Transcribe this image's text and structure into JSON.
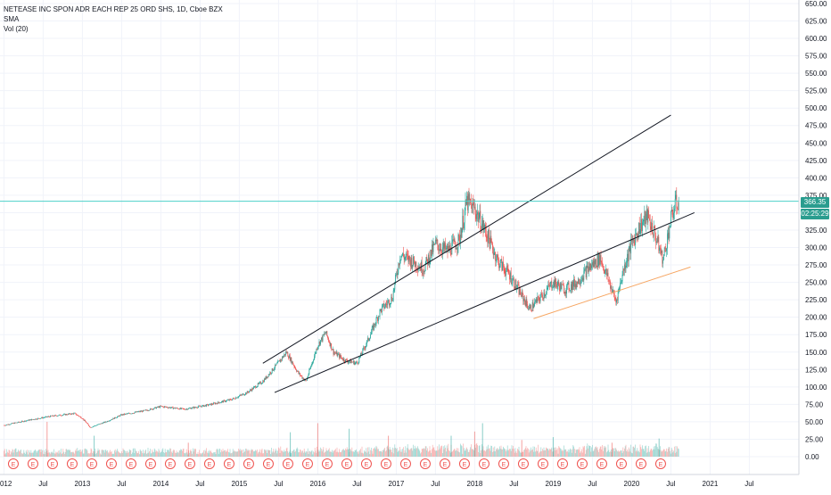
{
  "legend": {
    "symbol_line": "NETEASE INC SPON ADR EACH REP 25 ORD SHS, 1D, Cboe BZX",
    "indicator_1": "SMA",
    "indicator_2": "Vol (20)"
  },
  "price_tags": {
    "last_price": "366.35",
    "countdown": "02:25:29"
  },
  "colors": {
    "up": "#26a69a",
    "down": "#ef5350",
    "price_line": "#4dd0c8",
    "channel": "#131722",
    "support": "#f6a561",
    "grid": "#f0f3fa",
    "axis_text": "#131722",
    "tag_bg": "#2a9d8f",
    "earnings": "#ef5350"
  },
  "earnings_marker_label": "E",
  "chart_data": {
    "type": "candlestick",
    "title": "NETEASE INC SPON ADR EACH REP 25 ORD SHS, 1D, Cboe BZX",
    "y_axis": {
      "ticks": [
        "650.00",
        "625.00",
        "600.00",
        "575.00",
        "550.00",
        "525.00",
        "500.00",
        "475.00",
        "450.00",
        "425.00",
        "400.00",
        "375.00",
        "350.00",
        "325.00",
        "300.00",
        "275.00",
        "250.00",
        "225.00",
        "200.00",
        "175.00",
        "150.00",
        "125.00",
        "100.00",
        "75.00",
        "50.00",
        "25.00",
        "0.00"
      ],
      "range": [
        0,
        650
      ]
    },
    "x_axis": {
      "ticks": [
        "2012",
        "Jul",
        "2013",
        "Jul",
        "2014",
        "Jul",
        "2015",
        "Jul",
        "2016",
        "Jul",
        "2017",
        "Jul",
        "2018",
        "Jul",
        "2019",
        "Jul",
        "2020",
        "Jul",
        "2021",
        "Jul"
      ]
    },
    "last_price": 366.35,
    "price_path": [
      [
        2012.0,
        45
      ],
      [
        2012.3,
        52
      ],
      [
        2012.6,
        58
      ],
      [
        2012.9,
        62
      ],
      [
        2013.0,
        55
      ],
      [
        2013.1,
        42
      ],
      [
        2013.3,
        50
      ],
      [
        2013.5,
        60
      ],
      [
        2013.8,
        66
      ],
      [
        2014.0,
        72
      ],
      [
        2014.3,
        68
      ],
      [
        2014.6,
        74
      ],
      [
        2014.9,
        82
      ],
      [
        2015.1,
        92
      ],
      [
        2015.3,
        108
      ],
      [
        2015.5,
        135
      ],
      [
        2015.6,
        150
      ],
      [
        2015.75,
        120
      ],
      [
        2015.85,
        108
      ],
      [
        2016.0,
        160
      ],
      [
        2016.1,
        178
      ],
      [
        2016.2,
        150
      ],
      [
        2016.35,
        138
      ],
      [
        2016.5,
        134
      ],
      [
        2016.65,
        170
      ],
      [
        2016.8,
        210
      ],
      [
        2016.95,
        228
      ],
      [
        2017.05,
        290
      ],
      [
        2017.2,
        280
      ],
      [
        2017.35,
        270
      ],
      [
        2017.5,
        305
      ],
      [
        2017.65,
        295
      ],
      [
        2017.8,
        310
      ],
      [
        2017.9,
        365
      ],
      [
        2018.0,
        355
      ],
      [
        2018.15,
        320
      ],
      [
        2018.3,
        280
      ],
      [
        2018.45,
        260
      ],
      [
        2018.55,
        240
      ],
      [
        2018.7,
        212
      ],
      [
        2018.85,
        230
      ],
      [
        2019.0,
        250
      ],
      [
        2019.15,
        240
      ],
      [
        2019.3,
        250
      ],
      [
        2019.45,
        270
      ],
      [
        2019.6,
        285
      ],
      [
        2019.7,
        255
      ],
      [
        2019.8,
        222
      ],
      [
        2019.9,
        270
      ],
      [
        2020.0,
        305
      ],
      [
        2020.1,
        330
      ],
      [
        2020.2,
        345
      ],
      [
        2020.3,
        318
      ],
      [
        2020.4,
        282
      ],
      [
        2020.5,
        340
      ],
      [
        2020.55,
        360
      ],
      [
        2020.6,
        366.35
      ]
    ],
    "volume_spikes": [
      [
        2012.55,
        50
      ],
      [
        2013.15,
        30
      ],
      [
        2014.35,
        20
      ],
      [
        2015.65,
        35
      ],
      [
        2016.0,
        48
      ],
      [
        2016.4,
        40
      ],
      [
        2016.9,
        30
      ],
      [
        2017.7,
        30
      ],
      [
        2018.0,
        36
      ],
      [
        2018.1,
        48
      ],
      [
        2018.6,
        24
      ],
      [
        2019.0,
        28
      ],
      [
        2019.75,
        20
      ],
      [
        2020.35,
        26
      ]
    ],
    "earnings_dates": [
      2012.12,
      2012.37,
      2012.62,
      2012.87,
      2013.12,
      2013.37,
      2013.62,
      2013.87,
      2014.12,
      2014.37,
      2014.62,
      2014.87,
      2015.12,
      2015.37,
      2015.62,
      2015.87,
      2016.12,
      2016.37,
      2016.62,
      2016.87,
      2017.12,
      2017.37,
      2017.62,
      2017.87,
      2018.12,
      2018.37,
      2018.62,
      2018.87,
      2019.12,
      2019.37,
      2019.62,
      2019.87,
      2020.12,
      2020.37
    ],
    "trendlines": [
      {
        "role": "channel-upper",
        "from": [
          2015.3,
          134
        ],
        "to": [
          2020.5,
          490
        ]
      },
      {
        "role": "channel-lower",
        "from": [
          2015.45,
          92
        ],
        "to": [
          2020.8,
          350
        ]
      },
      {
        "role": "support",
        "from": [
          2018.75,
          198
        ],
        "to": [
          2020.75,
          272
        ]
      }
    ]
  }
}
